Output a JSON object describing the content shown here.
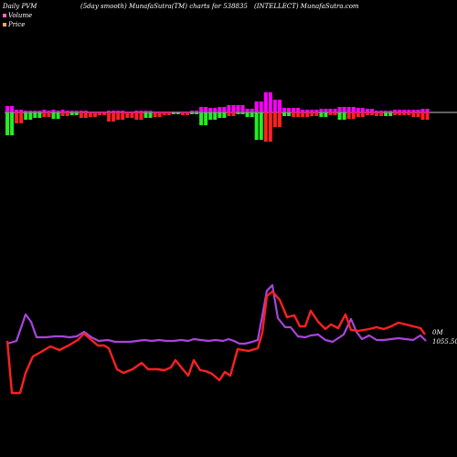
{
  "header": {
    "left": "Daily PVM",
    "mid": "(5day smooth) MunafaSutra(TM) charts for 538835",
    "right": "(INTELLECT) MunafaSutra.com"
  },
  "legend": {
    "volume_label": "Volume",
    "price_label": "Price",
    "volume_color": "#ff69b4",
    "price_color": "#f4a460"
  },
  "labels": {
    "volume_value": "0M",
    "price_value": "1055.50"
  },
  "chart_data": {
    "type": "bar-line",
    "colors": {
      "bar_up": "#ff00ff",
      "bar_down": "#ff2020",
      "bar_green": "#22ee22",
      "price_line": "#ff2020",
      "volume_line": "#aa44dd",
      "baseline": "#ffffff"
    },
    "volume_bars": {
      "up_heights": [
        7,
        7,
        3,
        3,
        2,
        2,
        2,
        2,
        3,
        2,
        3,
        2,
        3,
        2,
        2,
        2,
        2,
        2,
        1,
        1,
        1,
        1,
        2,
        2,
        2,
        2,
        1,
        1,
        2,
        2,
        2,
        2,
        1,
        1,
        1,
        1,
        1,
        1,
        1,
        1,
        2,
        2,
        6,
        6,
        5,
        5,
        6,
        6,
        8,
        8,
        8,
        8,
        4,
        4,
        4,
        4,
        4,
        4,
        4,
        4,
        5,
        5,
        5,
        5,
        3,
        3,
        3,
        3,
        4,
        4,
        4,
        4,
        6,
        6,
        6,
        6,
        5,
        5,
        4,
        4,
        2,
        2,
        2,
        2,
        3,
        3,
        3,
        3,
        3,
        3,
        4,
        4
      ],
      "down_heights": [
        25,
        25,
        12,
        12,
        8,
        8,
        6,
        6,
        5,
        5,
        7,
        7,
        4,
        4,
        3,
        3,
        6,
        6,
        5,
        5,
        3,
        3,
        10,
        10,
        8,
        8,
        6,
        6,
        8,
        8,
        6,
        6,
        5,
        5,
        3,
        3,
        2,
        2,
        3,
        3,
        2,
        2,
        14,
        14,
        8,
        8,
        6,
        6,
        4,
        4,
        2,
        2,
        5,
        5,
        3,
        3,
        4,
        4,
        2,
        2,
        4,
        4,
        5,
        5,
        5,
        5,
        4,
        4,
        5,
        5,
        3,
        3,
        8,
        8,
        7,
        7,
        5,
        5,
        3,
        3,
        4,
        4,
        4,
        4,
        3,
        3,
        3,
        3,
        5,
        5,
        8,
        8
      ],
      "green_mask": [
        1,
        1,
        0,
        0,
        1,
        1,
        1,
        1,
        0,
        0,
        1,
        1,
        0,
        0,
        1,
        1,
        0,
        0,
        0,
        0,
        0,
        0,
        0,
        0,
        0,
        0,
        0,
        0,
        0,
        0,
        1,
        1,
        0,
        0,
        0,
        0,
        1,
        1,
        0,
        0,
        1,
        1,
        1,
        1,
        1,
        1,
        1,
        1,
        0,
        0,
        1,
        1,
        1,
        1,
        1,
        1,
        0,
        0,
        0,
        0,
        1,
        1,
        0,
        0,
        0,
        0,
        0,
        0,
        1,
        1,
        0,
        0,
        1,
        1,
        0,
        0,
        0,
        0,
        0,
        0,
        0,
        0,
        1,
        1,
        0,
        0,
        0,
        0,
        0,
        0,
        0,
        0
      ],
      "tall_up": [
        {
          "i": 54,
          "h": 12
        },
        {
          "i": 55,
          "h": 12
        },
        {
          "i": 56,
          "h": 22
        },
        {
          "i": 57,
          "h": 22
        },
        {
          "i": 58,
          "h": 14
        },
        {
          "i": 59,
          "h": 14
        }
      ],
      "tall_down": [
        {
          "i": 54,
          "h": 30
        },
        {
          "i": 55,
          "h": 30
        },
        {
          "i": 56,
          "h": 32
        },
        {
          "i": 57,
          "h": 32
        },
        {
          "i": 58,
          "h": 16
        },
        {
          "i": 59,
          "h": 16
        }
      ]
    },
    "price_series": [
      55,
      55,
      28,
      36,
      70,
      90,
      70,
      40,
      25,
      20,
      16,
      14,
      12,
      10,
      8,
      10,
      12,
      11,
      10,
      14,
      16,
      14,
      8,
      4,
      2,
      2,
      3,
      4,
      5,
      8,
      10,
      10,
      4,
      8,
      22,
      28,
      27,
      25,
      22,
      21,
      23,
      18,
      18,
      16,
      15,
      17,
      20,
      21,
      19,
      17,
      16,
      14,
      12,
      16,
      23,
      28,
      32,
      45,
      48,
      46,
      42,
      36,
      38,
      30,
      28,
      25,
      21,
      18,
      17,
      19,
      20,
      21,
      22,
      16,
      12,
      10,
      9,
      11,
      14,
      16,
      19,
      20,
      18,
      17,
      22,
      28,
      26,
      22,
      18,
      16,
      14,
      10,
      8,
      6,
      4,
      3,
      2,
      0,
      -1,
      -4,
      -6
    ],
    "volume_series": [
      75,
      75,
      80,
      72,
      58,
      62,
      52,
      40,
      38,
      36,
      34,
      33,
      32,
      32,
      30,
      31,
      30,
      28,
      28,
      27,
      27,
      27,
      27,
      27,
      27,
      27,
      26,
      26,
      26,
      26,
      26,
      26,
      26,
      26,
      26,
      26,
      27,
      26,
      26,
      26,
      26,
      26,
      26,
      27,
      28,
      27,
      26,
      25,
      25,
      25,
      25,
      25,
      24,
      24,
      25,
      26,
      30,
      26,
      24,
      25,
      24,
      24,
      24,
      24,
      23,
      24,
      24,
      24,
      25,
      26,
      28,
      28,
      29,
      28,
      27,
      27,
      26,
      25,
      28,
      30,
      32,
      30,
      28,
      27,
      26,
      25,
      24,
      23,
      22,
      22,
      22,
      22,
      21,
      21,
      20,
      20,
      20,
      21,
      20,
      20,
      20
    ],
    "price_points": [
      [
        8,
        373
      ],
      [
        13,
        430
      ],
      [
        22,
        430
      ],
      [
        28,
        408
      ],
      [
        36,
        390
      ],
      [
        45,
        385
      ],
      [
        55,
        379
      ],
      [
        65,
        383
      ],
      [
        75,
        378
      ],
      [
        85,
        372
      ],
      [
        92,
        365
      ],
      [
        100,
        372
      ],
      [
        107,
        378
      ],
      [
        114,
        378
      ],
      [
        119,
        381
      ],
      [
        128,
        404
      ],
      [
        135,
        408
      ],
      [
        145,
        404
      ],
      [
        155,
        397
      ],
      [
        162,
        404
      ],
      [
        172,
        404
      ],
      [
        180,
        405
      ],
      [
        187,
        402
      ],
      [
        192,
        394
      ],
      [
        200,
        404
      ],
      [
        206,
        411
      ],
      [
        212,
        394
      ],
      [
        219,
        405
      ],
      [
        225,
        406
      ],
      [
        232,
        409
      ],
      [
        240,
        416
      ],
      [
        246,
        407
      ],
      [
        252,
        411
      ],
      [
        260,
        382
      ],
      [
        272,
        384
      ],
      [
        282,
        381
      ],
      [
        287,
        364
      ],
      [
        292,
        324
      ],
      [
        298,
        319
      ],
      [
        306,
        328
      ],
      [
        314,
        347
      ],
      [
        322,
        345
      ],
      [
        328,
        357
      ],
      [
        334,
        357
      ],
      [
        340,
        340
      ],
      [
        348,
        352
      ],
      [
        356,
        360
      ],
      [
        362,
        355
      ],
      [
        370,
        359
      ],
      [
        378,
        344
      ],
      [
        384,
        361
      ],
      [
        392,
        362
      ],
      [
        398,
        361
      ],
      [
        404,
        360
      ],
      [
        412,
        358
      ],
      [
        420,
        360
      ],
      [
        428,
        357
      ],
      [
        436,
        353
      ],
      [
        444,
        355
      ],
      [
        452,
        357
      ],
      [
        460,
        359
      ],
      [
        465,
        366
      ]
    ],
    "volume_points": [
      [
        8,
        376
      ],
      [
        18,
        373
      ],
      [
        28,
        344
      ],
      [
        34,
        352
      ],
      [
        40,
        369
      ],
      [
        50,
        369
      ],
      [
        60,
        368
      ],
      [
        68,
        368
      ],
      [
        76,
        369
      ],
      [
        84,
        368
      ],
      [
        92,
        363
      ],
      [
        100,
        369
      ],
      [
        108,
        373
      ],
      [
        118,
        372
      ],
      [
        126,
        374
      ],
      [
        134,
        374
      ],
      [
        142,
        374
      ],
      [
        150,
        373
      ],
      [
        158,
        372
      ],
      [
        166,
        373
      ],
      [
        174,
        372
      ],
      [
        182,
        373
      ],
      [
        190,
        373
      ],
      [
        198,
        372
      ],
      [
        206,
        373
      ],
      [
        212,
        371
      ],
      [
        220,
        372
      ],
      [
        228,
        373
      ],
      [
        236,
        372
      ],
      [
        244,
        373
      ],
      [
        250,
        371
      ],
      [
        256,
        373
      ],
      [
        262,
        376
      ],
      [
        268,
        376
      ],
      [
        276,
        374
      ],
      [
        282,
        372
      ],
      [
        288,
        340
      ],
      [
        292,
        318
      ],
      [
        298,
        312
      ],
      [
        304,
        348
      ],
      [
        312,
        358
      ],
      [
        318,
        358
      ],
      [
        326,
        368
      ],
      [
        334,
        369
      ],
      [
        340,
        367
      ],
      [
        348,
        366
      ],
      [
        356,
        372
      ],
      [
        364,
        374
      ],
      [
        370,
        370
      ],
      [
        376,
        366
      ],
      [
        384,
        349
      ],
      [
        390,
        363
      ],
      [
        396,
        371
      ],
      [
        404,
        367
      ],
      [
        412,
        372
      ],
      [
        420,
        372
      ],
      [
        428,
        371
      ],
      [
        436,
        370
      ],
      [
        444,
        371
      ],
      [
        452,
        372
      ],
      [
        460,
        367
      ],
      [
        466,
        373
      ]
    ]
  }
}
